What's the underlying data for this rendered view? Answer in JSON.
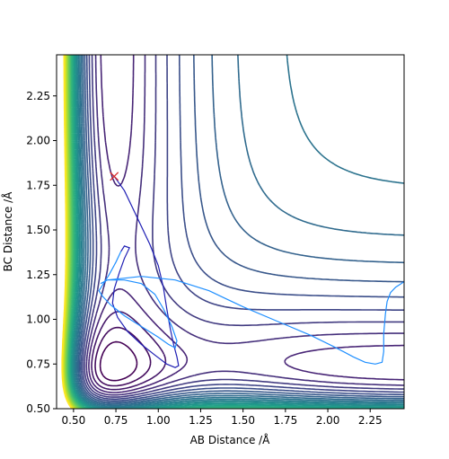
{
  "chart_data": {
    "type": "contour",
    "title": "",
    "xlabel": "AB Distance /Å",
    "ylabel": "BC Distance /Å",
    "xlim": [
      0.4,
      2.45
    ],
    "ylim": [
      0.5,
      2.48
    ],
    "xticks": [
      0.5,
      0.75,
      1.0,
      1.25,
      1.5,
      1.75,
      2.0,
      2.25
    ],
    "yticks": [
      0.5,
      0.75,
      1.0,
      1.25,
      1.5,
      1.75,
      2.0,
      2.25
    ],
    "xtick_labels": [
      "0.50",
      "0.75",
      "1.00",
      "1.25",
      "1.50",
      "1.75",
      "2.00",
      "2.25"
    ],
    "ytick_labels": [
      "0.50",
      "0.75",
      "1.00",
      "1.25",
      "1.50",
      "1.75",
      "2.00",
      "2.25"
    ],
    "colormap": "viridis",
    "contour_levels": 30,
    "start_marker": {
      "x": 0.74,
      "y": 1.8,
      "symbol": "x",
      "color": "#d62728"
    },
    "trajectories": [
      {
        "color": "#1f1fb4",
        "points": [
          [
            0.74,
            1.8
          ],
          [
            0.8,
            1.72
          ],
          [
            0.85,
            1.62
          ],
          [
            0.9,
            1.52
          ],
          [
            0.95,
            1.42
          ],
          [
            1.0,
            1.3
          ],
          [
            1.03,
            1.18
          ],
          [
            1.05,
            1.06
          ],
          [
            1.07,
            0.95
          ],
          [
            1.09,
            0.86
          ],
          [
            1.11,
            0.79
          ],
          [
            1.12,
            0.74
          ],
          [
            1.1,
            0.73
          ],
          [
            1.05,
            0.75
          ],
          [
            0.98,
            0.8
          ],
          [
            0.9,
            0.86
          ],
          [
            0.82,
            0.93
          ],
          [
            0.76,
            1.01
          ],
          [
            0.73,
            1.09
          ],
          [
            0.74,
            1.17
          ],
          [
            0.77,
            1.26
          ],
          [
            0.8,
            1.34
          ],
          [
            0.83,
            1.4
          ],
          [
            0.8,
            1.41
          ],
          [
            0.78,
            1.38
          ]
        ]
      },
      {
        "color": "#1f8fff",
        "points": [
          [
            0.78,
            1.38
          ],
          [
            0.75,
            1.32
          ],
          [
            0.71,
            1.25
          ],
          [
            0.67,
            1.19
          ],
          [
            0.65,
            1.16
          ],
          [
            0.67,
            1.13
          ],
          [
            0.72,
            1.08
          ],
          [
            0.8,
            1.02
          ],
          [
            0.9,
            0.96
          ],
          [
            1.0,
            0.9
          ],
          [
            1.06,
            0.86
          ],
          [
            1.1,
            0.84
          ],
          [
            1.11,
            0.88
          ],
          [
            1.08,
            0.96
          ],
          [
            1.03,
            1.06
          ],
          [
            0.98,
            1.14
          ],
          [
            0.9,
            1.2
          ],
          [
            0.8,
            1.22
          ],
          [
            0.7,
            1.22
          ],
          [
            0.66,
            1.2
          ],
          [
            0.7,
            1.22
          ],
          [
            0.9,
            1.24
          ],
          [
            1.1,
            1.22
          ],
          [
            1.3,
            1.16
          ],
          [
            1.5,
            1.07
          ],
          [
            1.7,
            0.99
          ],
          [
            1.9,
            0.91
          ],
          [
            2.05,
            0.84
          ],
          [
            2.15,
            0.79
          ],
          [
            2.22,
            0.76
          ],
          [
            2.28,
            0.75
          ],
          [
            2.32,
            0.76
          ],
          [
            2.33,
            0.82
          ],
          [
            2.33,
            0.92
          ],
          [
            2.34,
            1.03
          ],
          [
            2.35,
            1.1
          ],
          [
            2.37,
            1.15
          ],
          [
            2.4,
            1.18
          ],
          [
            2.45,
            1.21
          ]
        ]
      }
    ]
  }
}
